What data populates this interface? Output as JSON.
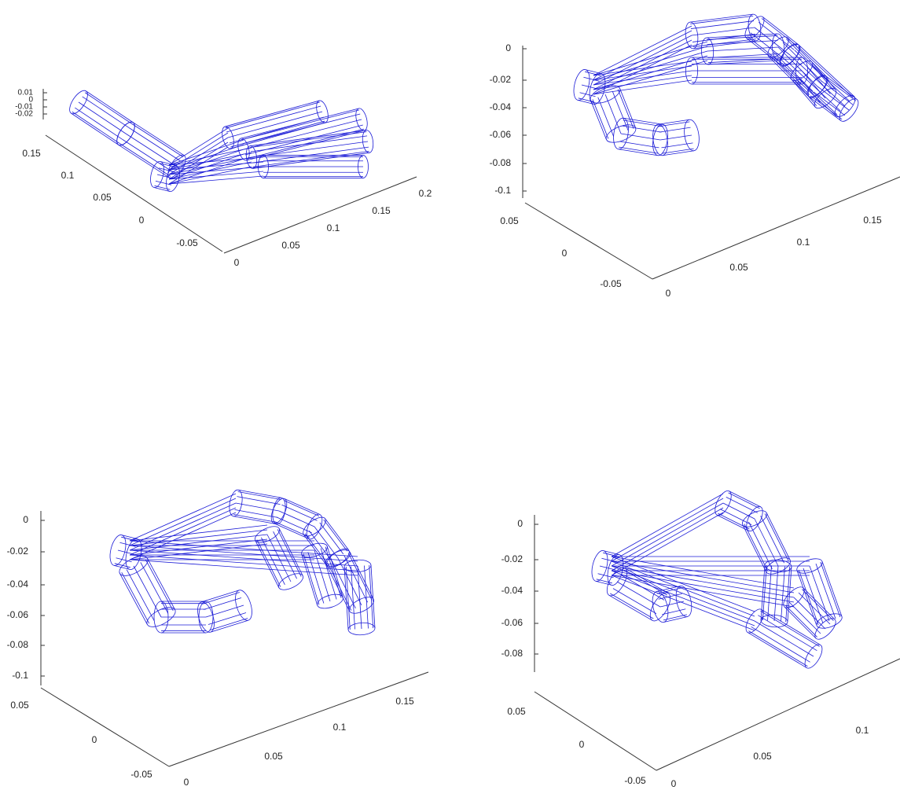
{
  "panels": [
    {
      "z_ticks": [
        "0.01",
        "0",
        "-0.01",
        "-0.02"
      ],
      "y_ticks": [
        "0.15",
        "0.1",
        "0.05",
        "0",
        "-0.05"
      ],
      "x_ticks": [
        "0",
        "0.05",
        "0.1",
        "0.15",
        "0.2"
      ]
    },
    {
      "z_ticks": [
        "0",
        "-0.02",
        "-0.04",
        "-0.06",
        "-0.08",
        "-0.1"
      ],
      "y_ticks": [
        "0.05",
        "0",
        "-0.05"
      ],
      "x_ticks": [
        "0",
        "0.05",
        "0.1",
        "0.15"
      ]
    },
    {
      "z_ticks": [
        "0",
        "-0.02",
        "-0.04",
        "-0.06",
        "-0.08",
        "-0.1"
      ],
      "y_ticks": [
        "0.05",
        "0",
        "-0.05"
      ],
      "x_ticks": [
        "0",
        "0.05",
        "0.1",
        "0.15"
      ]
    },
    {
      "z_ticks": [
        "0",
        "-0.02",
        "-0.04",
        "-0.06",
        "-0.08"
      ],
      "y_ticks": [
        "0.05",
        "0",
        "-0.05"
      ],
      "x_ticks": [
        "0",
        "0.05",
        "0.1"
      ]
    }
  ]
}
